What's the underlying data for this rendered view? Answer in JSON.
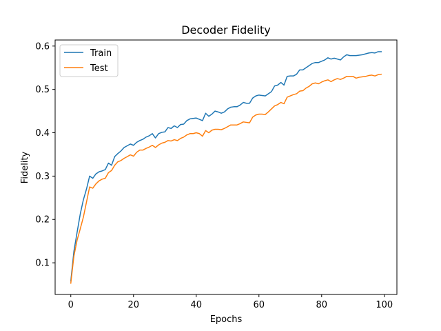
{
  "chart_data": {
    "type": "line",
    "title": "Decoder Fidelity",
    "xlabel": "Epochs",
    "ylabel": "Fidelity",
    "xlim": [
      -5,
      104
    ],
    "ylim": [
      0.027,
      0.614
    ],
    "xticks": [
      0,
      20,
      40,
      60,
      80,
      100
    ],
    "yticks": [
      0.1,
      0.2,
      0.3,
      0.4,
      0.5,
      0.6
    ],
    "grid": false,
    "legend_position": "top-left",
    "series": [
      {
        "name": "Train",
        "color": "#1f77b4",
        "x": [
          0,
          1,
          2,
          3,
          4,
          5,
          6,
          7,
          8,
          9,
          10,
          11,
          12,
          13,
          14,
          15,
          16,
          17,
          18,
          19,
          20,
          21,
          22,
          23,
          24,
          25,
          26,
          27,
          28,
          29,
          30,
          31,
          32,
          33,
          34,
          35,
          36,
          37,
          38,
          39,
          40,
          41,
          42,
          43,
          44,
          45,
          46,
          47,
          48,
          49,
          50,
          51,
          52,
          53,
          54,
          55,
          56,
          57,
          58,
          59,
          60,
          61,
          62,
          63,
          64,
          65,
          66,
          67,
          68,
          69,
          70,
          71,
          72,
          73,
          74,
          75,
          76,
          77,
          78,
          79,
          80,
          81,
          82,
          83,
          84,
          85,
          86,
          87,
          88,
          89,
          90,
          91,
          92,
          93,
          94,
          95,
          96,
          97,
          98,
          99
        ],
        "values": [
          0.058,
          0.127,
          0.17,
          0.212,
          0.245,
          0.27,
          0.3,
          0.295,
          0.305,
          0.31,
          0.312,
          0.315,
          0.33,
          0.325,
          0.345,
          0.352,
          0.358,
          0.366,
          0.37,
          0.374,
          0.371,
          0.378,
          0.382,
          0.385,
          0.39,
          0.393,
          0.398,
          0.388,
          0.398,
          0.401,
          0.402,
          0.412,
          0.41,
          0.416,
          0.412,
          0.419,
          0.42,
          0.428,
          0.432,
          0.433,
          0.434,
          0.431,
          0.428,
          0.445,
          0.438,
          0.443,
          0.45,
          0.448,
          0.445,
          0.448,
          0.455,
          0.459,
          0.46,
          0.46,
          0.464,
          0.47,
          0.468,
          0.468,
          0.48,
          0.485,
          0.487,
          0.486,
          0.485,
          0.49,
          0.495,
          0.508,
          0.51,
          0.516,
          0.51,
          0.53,
          0.531,
          0.531,
          0.535,
          0.545,
          0.545,
          0.55,
          0.555,
          0.56,
          0.562,
          0.562,
          0.565,
          0.568,
          0.573,
          0.57,
          0.572,
          0.57,
          0.568,
          0.575,
          0.58,
          0.578,
          0.578,
          0.578,
          0.579,
          0.58,
          0.582,
          0.584,
          0.585,
          0.584,
          0.587,
          0.587
        ]
      },
      {
        "name": "Test",
        "color": "#ff7f0e",
        "x": [
          0,
          1,
          2,
          3,
          4,
          5,
          6,
          7,
          8,
          9,
          10,
          11,
          12,
          13,
          14,
          15,
          16,
          17,
          18,
          19,
          20,
          21,
          22,
          23,
          24,
          25,
          26,
          27,
          28,
          29,
          30,
          31,
          32,
          33,
          34,
          35,
          36,
          37,
          38,
          39,
          40,
          41,
          42,
          43,
          44,
          45,
          46,
          47,
          48,
          49,
          50,
          51,
          52,
          53,
          54,
          55,
          56,
          57,
          58,
          59,
          60,
          61,
          62,
          63,
          64,
          65,
          66,
          67,
          68,
          69,
          70,
          71,
          72,
          73,
          74,
          75,
          76,
          77,
          78,
          79,
          80,
          81,
          82,
          83,
          84,
          85,
          86,
          87,
          88,
          89,
          90,
          91,
          92,
          93,
          94,
          95,
          96,
          97,
          98,
          99
        ],
        "values": [
          0.053,
          0.116,
          0.152,
          0.178,
          0.205,
          0.24,
          0.275,
          0.272,
          0.282,
          0.289,
          0.293,
          0.295,
          0.308,
          0.313,
          0.325,
          0.333,
          0.336,
          0.341,
          0.345,
          0.349,
          0.346,
          0.355,
          0.36,
          0.36,
          0.364,
          0.367,
          0.371,
          0.366,
          0.372,
          0.376,
          0.378,
          0.382,
          0.381,
          0.384,
          0.382,
          0.387,
          0.39,
          0.395,
          0.398,
          0.398,
          0.4,
          0.398,
          0.392,
          0.405,
          0.4,
          0.406,
          0.408,
          0.408,
          0.407,
          0.41,
          0.414,
          0.418,
          0.418,
          0.418,
          0.421,
          0.425,
          0.424,
          0.423,
          0.436,
          0.441,
          0.443,
          0.443,
          0.442,
          0.448,
          0.455,
          0.462,
          0.465,
          0.47,
          0.467,
          0.482,
          0.485,
          0.488,
          0.49,
          0.496,
          0.497,
          0.503,
          0.507,
          0.513,
          0.515,
          0.513,
          0.517,
          0.52,
          0.522,
          0.518,
          0.522,
          0.525,
          0.523,
          0.526,
          0.53,
          0.53,
          0.53,
          0.526,
          0.528,
          0.529,
          0.53,
          0.532,
          0.533,
          0.531,
          0.534,
          0.535
        ]
      }
    ]
  }
}
